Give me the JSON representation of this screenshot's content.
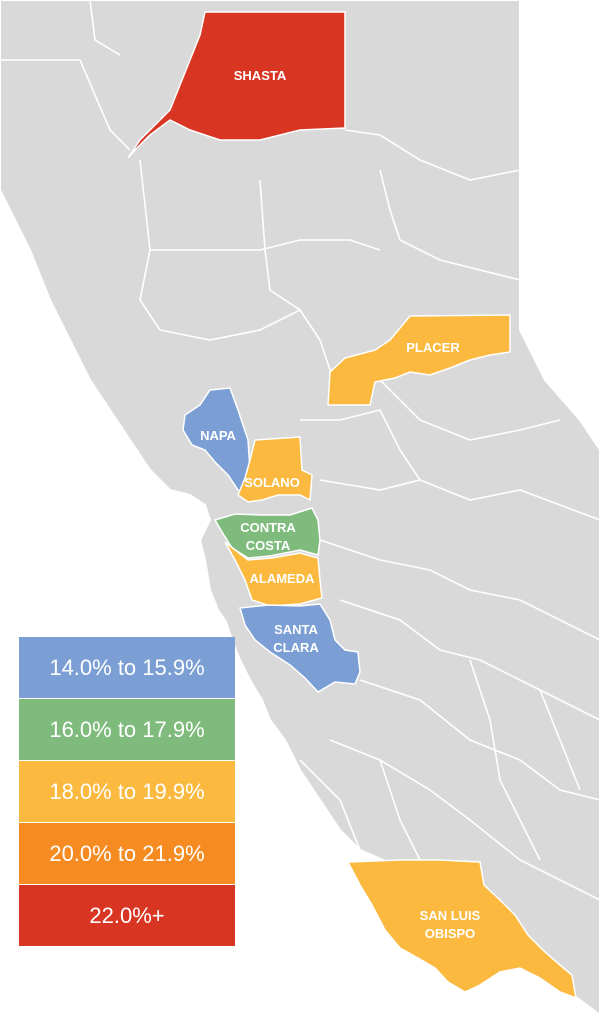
{
  "colors": {
    "land": "#d9d9d9",
    "border": "#ffffff",
    "band_14": "#7b9fd4",
    "band_16": "#7fbb7d",
    "band_18": "#fbb93f",
    "band_20": "#f58b21",
    "band_22": "#d93523"
  },
  "counties": [
    {
      "name": "SHASTA",
      "band": "22.0%+"
    },
    {
      "name": "PLACER",
      "band": "18.0% to 19.9%"
    },
    {
      "name": "NAPA",
      "band": "14.0% to 15.9%"
    },
    {
      "name": "SOLANO",
      "band": "18.0% to 19.9%"
    },
    {
      "name_line1": "CONTRA",
      "name_line2": "COSTA",
      "band": "16.0% to 17.9%"
    },
    {
      "name": "ALAMEDA",
      "band": "18.0% to 19.9%"
    },
    {
      "name_line1": "SANTA",
      "name_line2": "CLARA",
      "band": "14.0% to 15.9%"
    },
    {
      "name_line1": "SAN LUIS",
      "name_line2": "OBISPO",
      "band": "18.0% to 19.9%"
    }
  ],
  "legend": [
    {
      "label": "14.0% to 15.9%",
      "color": "#7b9fd4"
    },
    {
      "label": "16.0% to 17.9%",
      "color": "#7fbb7d"
    },
    {
      "label": "18.0% to 19.9%",
      "color": "#fbb93f"
    },
    {
      "label": "20.0% to 21.9%",
      "color": "#f58b21"
    },
    {
      "label": "22.0%+",
      "color": "#d93523"
    }
  ]
}
